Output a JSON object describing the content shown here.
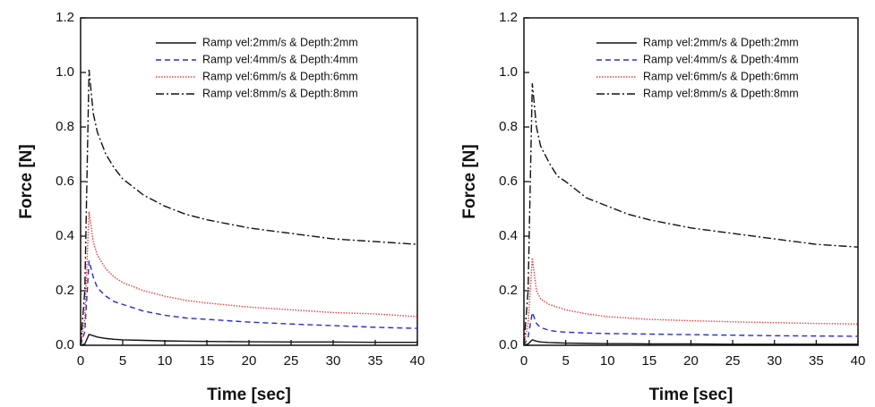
{
  "chart_data": [
    {
      "type": "line",
      "xlabel": "Time [sec]",
      "ylabel": "Force [N]",
      "x": [
        0,
        0.5,
        1,
        1.5,
        2,
        3,
        4,
        5,
        7.5,
        10,
        12.5,
        15,
        20,
        25,
        30,
        35,
        40
      ],
      "series": [
        {
          "name": "Ramp vel:2mm/s & Depth:2mm",
          "color": "#111111",
          "style": "solid",
          "values": [
            0,
            0.005,
            0.04,
            0.035,
            0.03,
            0.025,
            0.022,
            0.02,
            0.018,
            0.016,
            0.015,
            0.014,
            0.013,
            0.012,
            0.012,
            0.011,
            0.011
          ]
        },
        {
          "name": "Ramp vel:4mm/s & Depth:4mm",
          "color": "#2a2ad6",
          "style": "dashed",
          "values": [
            0,
            0.05,
            0.31,
            0.25,
            0.21,
            0.18,
            0.16,
            0.15,
            0.125,
            0.11,
            0.1,
            0.095,
            0.085,
            0.078,
            0.072,
            0.066,
            0.062
          ]
        },
        {
          "name": "Ramp vel:6mm/s & Depth:6mm",
          "color": "#e8413c",
          "style": "dotted",
          "values": [
            0,
            0.1,
            0.49,
            0.38,
            0.33,
            0.28,
            0.25,
            0.23,
            0.2,
            0.18,
            0.165,
            0.155,
            0.14,
            0.13,
            0.12,
            0.115,
            0.105
          ]
        },
        {
          "name": "Ramp vel:8mm/s & Depth:8mm",
          "color": "#111111",
          "style": "dashdot",
          "values": [
            0,
            0.2,
            1.01,
            0.85,
            0.78,
            0.7,
            0.65,
            0.61,
            0.55,
            0.51,
            0.48,
            0.46,
            0.43,
            0.41,
            0.39,
            0.38,
            0.37
          ]
        }
      ],
      "xlim": [
        0,
        40
      ],
      "xticks": [
        0,
        5,
        10,
        15,
        20,
        25,
        30,
        35,
        40
      ],
      "ylim": [
        0,
        1.2
      ],
      "yticks": [
        {
          "value": 0,
          "label": "0.0"
        },
        {
          "value": 0.2,
          "label": "0.2"
        },
        {
          "value": 0.4,
          "label": "0.4"
        },
        {
          "value": 0.6,
          "label": "0.6"
        },
        {
          "value": 0.8,
          "label": "0.8"
        },
        {
          "value": 1.0,
          "label": "1.0"
        },
        {
          "value": 1.2,
          "label": "1.2"
        }
      ],
      "legend": "upper right"
    },
    {
      "type": "line",
      "xlabel": "Time [sec]",
      "ylabel": "Force [N]",
      "x": [
        0,
        0.5,
        1,
        1.5,
        2,
        3,
        4,
        5,
        7.5,
        10,
        12.5,
        15,
        20,
        25,
        30,
        35,
        40
      ],
      "series": [
        {
          "name": "Ramp vel:2mm/s & Dpeth:2mm",
          "color": "#111111",
          "style": "solid",
          "values": [
            0,
            0.005,
            0.02,
            0.015,
            0.012,
            0.01,
            0.009,
            0.008,
            0.007,
            0.006,
            0.006,
            0.005,
            0.005,
            0.004,
            0.004,
            0.004,
            0.004
          ]
        },
        {
          "name": "Ramp vel:4mm/s & Dpeth:4mm",
          "color": "#2a2ad6",
          "style": "dashed",
          "values": [
            0,
            0.03,
            0.12,
            0.08,
            0.065,
            0.055,
            0.05,
            0.048,
            0.045,
            0.043,
            0.042,
            0.041,
            0.039,
            0.037,
            0.035,
            0.034,
            0.033
          ]
        },
        {
          "name": "Ramp vel:6mm/s & Dpeth:6mm",
          "color": "#e8413c",
          "style": "dotted",
          "values": [
            0,
            0.08,
            0.32,
            0.2,
            0.17,
            0.15,
            0.14,
            0.13,
            0.115,
            0.105,
            0.1,
            0.095,
            0.09,
            0.086,
            0.083,
            0.08,
            0.078
          ]
        },
        {
          "name": "Ramp vel:8mm/s & Dpeth:8mm",
          "color": "#111111",
          "style": "dashdot",
          "values": [
            0,
            0.2,
            0.96,
            0.8,
            0.73,
            0.67,
            0.62,
            0.6,
            0.54,
            0.51,
            0.48,
            0.46,
            0.43,
            0.41,
            0.39,
            0.37,
            0.36
          ]
        }
      ],
      "xlim": [
        0,
        40
      ],
      "xticks": [
        0,
        5,
        10,
        15,
        20,
        25,
        30,
        35,
        40
      ],
      "ylim": [
        0,
        1.2
      ],
      "yticks": [
        {
          "value": 0,
          "label": "0.0"
        },
        {
          "value": 0.2,
          "label": "0.2"
        },
        {
          "value": 0.4,
          "label": "0.4"
        },
        {
          "value": 0.6,
          "label": "0.6"
        },
        {
          "value": 0.8,
          "label": "0.8"
        },
        {
          "value": 1.0,
          "label": "1.0"
        },
        {
          "value": 1.2,
          "label": "1.2"
        }
      ],
      "legend": "upper right"
    }
  ]
}
